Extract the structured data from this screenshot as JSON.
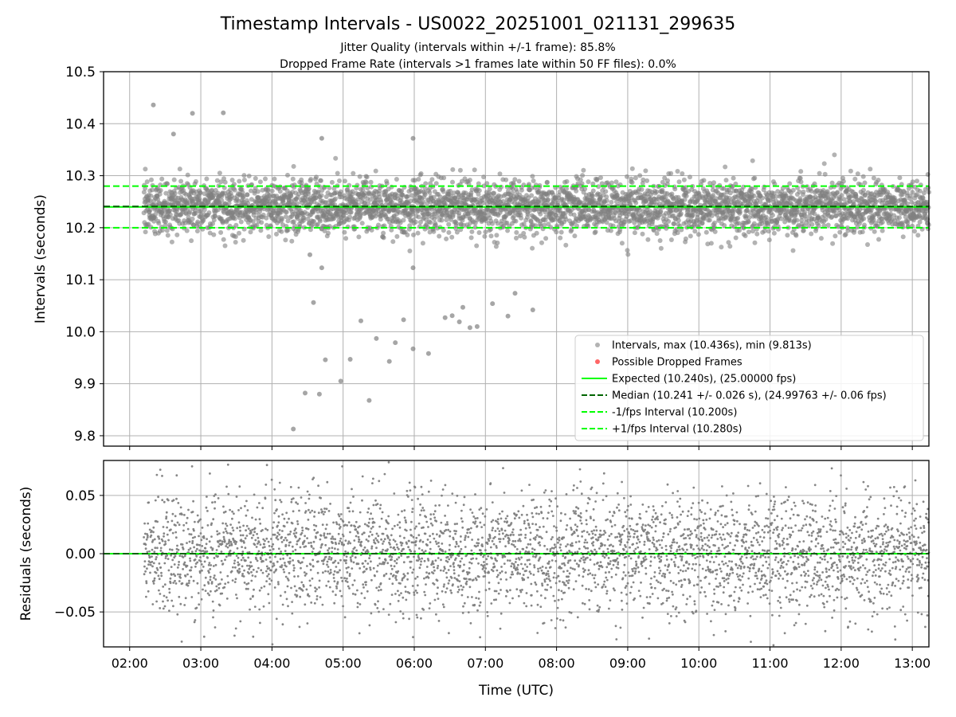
{
  "title": "Timestamp Intervals - US0022_20251001_021131_299635",
  "subtitle_1": "Jitter Quality (intervals within +/-1 frame): 85.8%",
  "subtitle_2": "Dropped Frame Rate (intervals >1 frames late within 50 FF files): 0.0%",
  "colors": {
    "points": "#808080",
    "dropped": "#ff0000",
    "expected": "#00ff00",
    "median": "#006400",
    "interval_lines": "#00ff00",
    "grid": "#b0b0b0"
  },
  "chart_data": [
    {
      "type": "scatter",
      "name": "intervals",
      "ylabel": "Intervals (seconds)",
      "xlim": [
        "01:38",
        "13:14"
      ],
      "ylim": [
        9.78,
        10.5
      ],
      "y_ticks": [
        "10.5",
        "10.4",
        "10.3",
        "10.2",
        "10.1",
        "10.0",
        "9.9",
        "9.8"
      ],
      "grid": true,
      "legend_position": "lower-right",
      "legend": [
        {
          "label": "Intervals, max (10.436s), min (9.813s)",
          "kind": "marker",
          "color": "#808080"
        },
        {
          "label": "Possible Dropped Frames",
          "kind": "marker",
          "color": "#ff0000"
        },
        {
          "label": "Expected (10.240s), (25.00000 fps)",
          "kind": "solid",
          "color": "#00ff00"
        },
        {
          "label": "Median (10.241 +/- 0.026 s), (24.99763 +/- 0.06 fps)",
          "kind": "dashed",
          "color": "#006400"
        },
        {
          "label": "-1/fps Interval (10.200s)",
          "kind": "dashed",
          "color": "#00ff00"
        },
        {
          "label": "+1/fps Interval (10.280s)",
          "kind": "dashed",
          "color": "#00ff00"
        }
      ],
      "reference_lines": {
        "expected": 10.24,
        "median": 10.241,
        "minus_1fps": 10.2,
        "plus_1fps": 10.28
      },
      "data_start": "02:12",
      "data_end": "13:14",
      "point_count": 3880,
      "core_band": {
        "center": 10.24,
        "spread": 0.026
      },
      "outliers": [
        {
          "x": "02:20",
          "y": 10.436
        },
        {
          "x": "02:37",
          "y": 10.38
        },
        {
          "x": "02:53",
          "y": 10.42
        },
        {
          "x": "03:19",
          "y": 10.421
        },
        {
          "x": "04:18",
          "y": 9.813
        },
        {
          "x": "04:25",
          "y": 10.28
        },
        {
          "x": "04:28",
          "y": 9.882
        },
        {
          "x": "04:32",
          "y": 10.148
        },
        {
          "x": "04:35",
          "y": 10.056
        },
        {
          "x": "04:40",
          "y": 9.88
        },
        {
          "x": "04:42",
          "y": 10.123
        },
        {
          "x": "04:42",
          "y": 10.372
        },
        {
          "x": "04:45",
          "y": 9.946
        },
        {
          "x": "04:58",
          "y": 9.905
        },
        {
          "x": "05:06",
          "y": 9.947
        },
        {
          "x": "05:15",
          "y": 10.021
        },
        {
          "x": "05:22",
          "y": 9.868
        },
        {
          "x": "05:28",
          "y": 9.987
        },
        {
          "x": "05:39",
          "y": 9.943
        },
        {
          "x": "05:44",
          "y": 9.979
        },
        {
          "x": "05:51",
          "y": 10.023
        },
        {
          "x": "05:59",
          "y": 9.967
        },
        {
          "x": "05:59",
          "y": 10.123
        },
        {
          "x": "05:59",
          "y": 10.372
        },
        {
          "x": "06:12",
          "y": 9.958
        },
        {
          "x": "06:26",
          "y": 10.027
        },
        {
          "x": "06:32",
          "y": 10.031
        },
        {
          "x": "06:38",
          "y": 10.019
        },
        {
          "x": "06:41",
          "y": 10.047
        },
        {
          "x": "06:47",
          "y": 10.008
        },
        {
          "x": "06:53",
          "y": 10.01
        },
        {
          "x": "07:06",
          "y": 10.054
        },
        {
          "x": "07:19",
          "y": 10.03
        },
        {
          "x": "07:25",
          "y": 10.074
        },
        {
          "x": "07:40",
          "y": 10.042
        }
      ],
      "x_axis_shared": true
    },
    {
      "type": "scatter",
      "name": "residuals",
      "xlabel": "Time (UTC)",
      "ylabel": "Residuals (seconds)",
      "xlim": [
        "01:38",
        "13:14"
      ],
      "ylim": [
        -0.08,
        0.08
      ],
      "y_ticks": [
        "0.05",
        "0.00",
        "−0.05"
      ],
      "x_ticks": [
        "02:00",
        "03:00",
        "04:00",
        "05:00",
        "06:00",
        "07:00",
        "08:00",
        "09:00",
        "10:00",
        "11:00",
        "12:00",
        "13:00"
      ],
      "grid": true,
      "reference_lines": {
        "zero_expected": 0.0,
        "zero_median": 0.0
      },
      "point_count": 3880,
      "spread": 0.026
    }
  ]
}
